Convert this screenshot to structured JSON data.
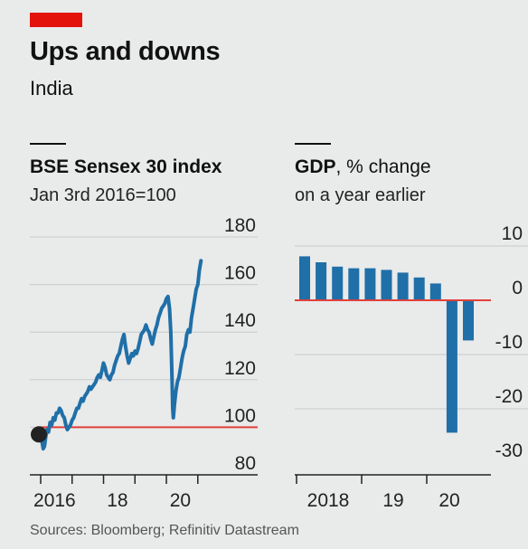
{
  "header": {
    "title": "Ups and downs",
    "subtitle": "India",
    "accent_color": "#e3120b"
  },
  "chart_data": [
    {
      "type": "line",
      "title": "BSE Sensex 30 index",
      "subtitle": "Jan 3rd 2016=100",
      "ylim": [
        80,
        180
      ],
      "y_ticks": [
        "180",
        "160",
        "140",
        "120",
        "100",
        "80"
      ],
      "x_ticks": [
        "2016",
        "18",
        "20"
      ],
      "xlim": [
        2016.0,
        2021.15
      ],
      "reference_line": 100,
      "start_marker": [
        2016.0,
        97
      ],
      "grid": true,
      "series": [
        {
          "color": "#1f6fa8",
          "points": [
            [
              2016.0,
              97
            ],
            [
              2016.04,
              94
            ],
            [
              2016.08,
              91
            ],
            [
              2016.12,
              92
            ],
            [
              2016.16,
              96
            ],
            [
              2016.2,
              99
            ],
            [
              2016.25,
              98
            ],
            [
              2016.3,
              102
            ],
            [
              2016.35,
              101
            ],
            [
              2016.4,
              104
            ],
            [
              2016.45,
              103
            ],
            [
              2016.5,
              106
            ],
            [
              2016.55,
              106
            ],
            [
              2016.6,
              108
            ],
            [
              2016.65,
              107
            ],
            [
              2016.7,
              105
            ],
            [
              2016.75,
              104
            ],
            [
              2016.8,
              101
            ],
            [
              2016.85,
              99
            ],
            [
              2016.9,
              100
            ],
            [
              2016.95,
              101
            ],
            [
              2017.0,
              103
            ],
            [
              2017.05,
              104
            ],
            [
              2017.1,
              106
            ],
            [
              2017.15,
              108
            ],
            [
              2017.2,
              108
            ],
            [
              2017.25,
              110
            ],
            [
              2017.3,
              112
            ],
            [
              2017.35,
              111
            ],
            [
              2017.4,
              113
            ],
            [
              2017.45,
              114
            ],
            [
              2017.5,
              115
            ],
            [
              2017.55,
              117
            ],
            [
              2017.6,
              116
            ],
            [
              2017.65,
              117
            ],
            [
              2017.7,
              118
            ],
            [
              2017.75,
              119
            ],
            [
              2017.8,
              121
            ],
            [
              2017.85,
              122
            ],
            [
              2017.9,
              121
            ],
            [
              2017.95,
              124
            ],
            [
              2018.0,
              127
            ],
            [
              2018.05,
              125
            ],
            [
              2018.1,
              122
            ],
            [
              2018.15,
              121
            ],
            [
              2018.2,
              120
            ],
            [
              2018.25,
              122
            ],
            [
              2018.3,
              123
            ],
            [
              2018.35,
              126
            ],
            [
              2018.4,
              128
            ],
            [
              2018.45,
              130
            ],
            [
              2018.5,
              131
            ],
            [
              2018.55,
              134
            ],
            [
              2018.6,
              137
            ],
            [
              2018.65,
              139
            ],
            [
              2018.7,
              134
            ],
            [
              2018.75,
              130
            ],
            [
              2018.8,
              127
            ],
            [
              2018.85,
              129
            ],
            [
              2018.9,
              131
            ],
            [
              2018.95,
              130
            ],
            [
              2019.0,
              132
            ],
            [
              2019.05,
              131
            ],
            [
              2019.1,
              133
            ],
            [
              2019.15,
              136
            ],
            [
              2019.2,
              139
            ],
            [
              2019.25,
              140
            ],
            [
              2019.3,
              141
            ],
            [
              2019.35,
              143
            ],
            [
              2019.4,
              141
            ],
            [
              2019.45,
              140
            ],
            [
              2019.5,
              137
            ],
            [
              2019.55,
              135
            ],
            [
              2019.6,
              138
            ],
            [
              2019.65,
              141
            ],
            [
              2019.7,
              143
            ],
            [
              2019.75,
              146
            ],
            [
              2019.8,
              148
            ],
            [
              2019.85,
              150
            ],
            [
              2019.9,
              151
            ],
            [
              2019.95,
              152
            ],
            [
              2020.0,
              154
            ],
            [
              2020.05,
              155
            ],
            [
              2020.1,
              150
            ],
            [
              2020.14,
              140
            ],
            [
              2020.18,
              120
            ],
            [
              2020.2,
              108
            ],
            [
              2020.22,
              104
            ],
            [
              2020.26,
              110
            ],
            [
              2020.3,
              115
            ],
            [
              2020.35,
              119
            ],
            [
              2020.4,
              121
            ],
            [
              2020.45,
              125
            ],
            [
              2020.5,
              129
            ],
            [
              2020.55,
              132
            ],
            [
              2020.6,
              134
            ],
            [
              2020.65,
              139
            ],
            [
              2020.7,
              141
            ],
            [
              2020.75,
              140
            ],
            [
              2020.8,
              146
            ],
            [
              2020.85,
              150
            ],
            [
              2020.9,
              154
            ],
            [
              2020.95,
              158
            ],
            [
              2021.0,
              160
            ],
            [
              2021.05,
              166
            ],
            [
              2021.1,
              170
            ]
          ]
        }
      ]
    },
    {
      "type": "bar",
      "title": "GDP",
      "title_suffix": ", % change",
      "subtitle": "on a year earlier",
      "ylim": [
        -30,
        10
      ],
      "y_ticks": [
        "10",
        "0",
        "-10",
        "-20",
        "-30"
      ],
      "x_ticks": [
        "2018",
        "19",
        "20"
      ],
      "reference_line": 0,
      "grid": true,
      "series": [
        {
          "color": "#1f6fa8",
          "values": [
            8.1,
            7.0,
            6.2,
            5.9,
            5.9,
            5.6,
            5.1,
            4.2,
            3.1,
            -24.4,
            -7.4
          ]
        }
      ]
    }
  ],
  "footer": {
    "source": "Sources: Bloomberg; Refinitiv Datastream"
  }
}
